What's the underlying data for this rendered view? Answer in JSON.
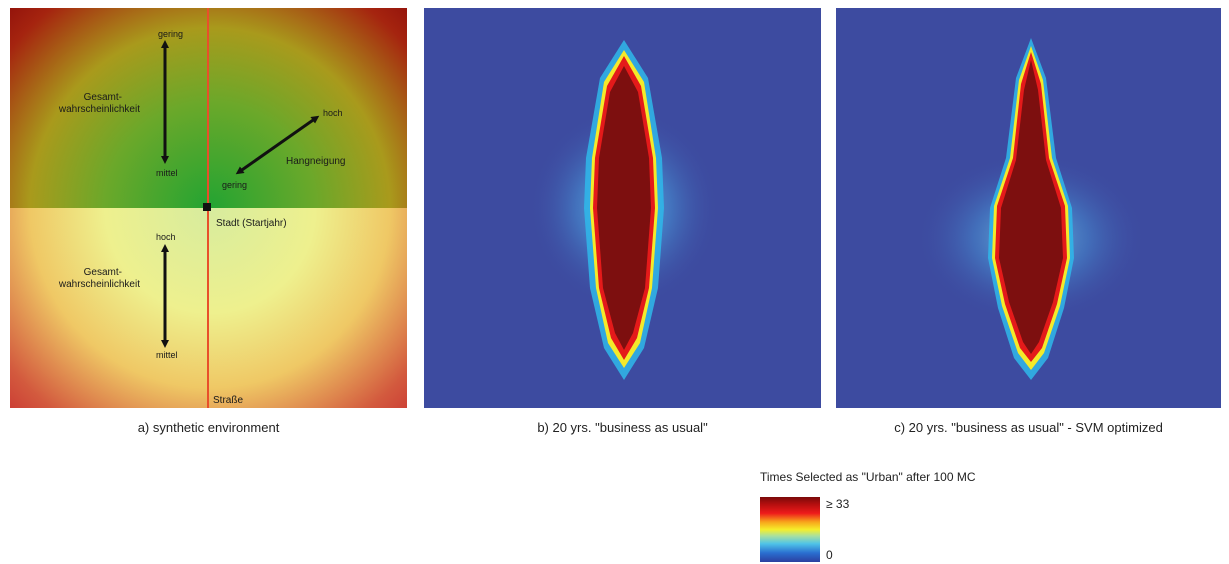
{
  "panel_a": {
    "top": {
      "label_gering": "gering",
      "label_gesamt": "Gesamt-",
      "label_wahrsch": "wahrscheinlichkeit",
      "label_mittel": "mittel",
      "label_hoch": "hoch",
      "label_gering2": "gering",
      "label_hang": "Hangneigung"
    },
    "label_stadt": "Stadt (Startjahr)",
    "bottom": {
      "label_hoch": "hoch",
      "label_gesamt": "Gesamt-",
      "label_wahrsch": "wahrscheinlichkeit",
      "label_mittel": "mittel"
    },
    "label_strasse": "Straße"
  },
  "captions": {
    "a": "a) synthetic environment",
    "b": "b) 20 yrs. \"business as usual\"",
    "c": "c) 20 yrs. \"business as usual\" - SVM optimized"
  },
  "legend": {
    "title": "Times Selected as \"Urban\" after 100 MC",
    "max_label": "≥ 33",
    "min_label": "0"
  },
  "colors": {
    "road": "#e8502a",
    "background_blue": "#3d4ba0",
    "core_red": "#7d0f0f"
  }
}
